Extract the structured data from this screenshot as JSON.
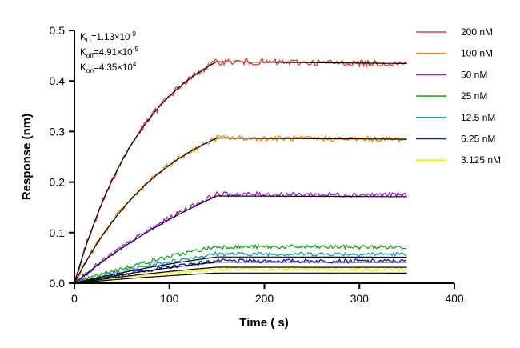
{
  "chart_data": {
    "type": "line",
    "title": "",
    "xlabel": "Time ( s)",
    "ylabel": "Response (nm)",
    "xlim": [
      0,
      400
    ],
    "ylim": [
      0,
      0.5
    ],
    "x_ticks": [
      0,
      100,
      200,
      300,
      400
    ],
    "y_ticks": [
      0.0,
      0.1,
      0.2,
      0.3,
      0.4,
      0.5
    ],
    "x_tick_labels": [
      "0",
      "100",
      "200",
      "300",
      "400"
    ],
    "y_tick_labels": [
      "0.0",
      "0.1",
      "0.2",
      "0.3",
      "0.4",
      "0.5"
    ],
    "grid": false,
    "legend_position": "top-right",
    "association_end": 150,
    "x_end": 350,
    "fit_color": "#000000",
    "kinetics": [
      {
        "name": "K",
        "sub": "D",
        "text": "=1.13×10",
        "sup": "-9"
      },
      {
        "name": "K",
        "sub": "off",
        "text": "=4.91×10",
        "sup": "-5"
      },
      {
        "name": "K",
        "sub": "on",
        "text": "=4.35×10",
        "sup": "4"
      }
    ],
    "series": [
      {
        "name": "200 nM",
        "color": "#e8403a",
        "plateau": 0.438,
        "curvature": 1.9
      },
      {
        "name": "100 nM",
        "color": "#f28c1c",
        "plateau": 0.287,
        "curvature": 1.5
      },
      {
        "name": "50 nM",
        "color": "#a020c8",
        "plateau": 0.176,
        "curvature": 0.6
      },
      {
        "name": "25 nM",
        "color": "#22a52a",
        "plateau": 0.072,
        "curvature": 0.6
      },
      {
        "name": "12.5 nM",
        "color": "#2a9db5",
        "plateau": 0.058,
        "curvature": 0.6
      },
      {
        "name": "6.25 nM",
        "color": "#1a1ab8",
        "plateau": 0.044,
        "curvature": 0.6
      },
      {
        "name": "3.125 nM",
        "color": "#f2f000",
        "plateau": 0.028,
        "curvature": 0.6
      }
    ]
  }
}
